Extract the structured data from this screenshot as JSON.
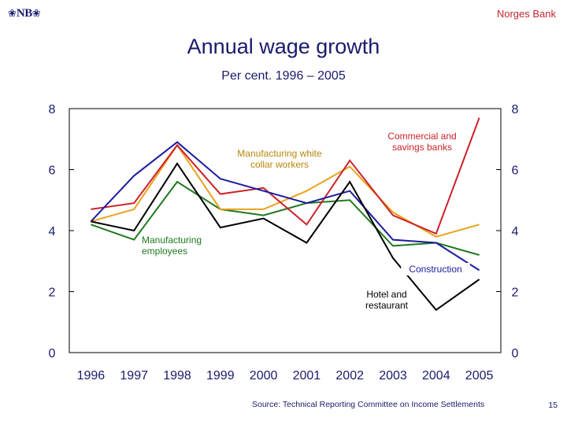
{
  "header": {
    "logo_text": "NB",
    "brand": "Norges Bank"
  },
  "footer": {
    "source": "Source: Technical Reporting Committee on Income Settlements",
    "page_number": "15"
  },
  "colors": {
    "heading": "#1a1a6e",
    "brand": "#c0262d",
    "axis": "#000000"
  },
  "chart_data": {
    "type": "line",
    "title": "Annual wage growth",
    "subtitle": "Per cent. 1996 – 2005",
    "xlabel": "",
    "ylabel": "",
    "categories": [
      "1996",
      "1997",
      "1998",
      "1999",
      "2000",
      "2001",
      "2002",
      "2003",
      "2004",
      "2005"
    ],
    "ylim": [
      0,
      8
    ],
    "yticks": [
      0,
      2,
      4,
      6,
      8
    ],
    "y_axis_sides": [
      "left",
      "right"
    ],
    "grid": false,
    "series": [
      {
        "name": "Manufacturing employees",
        "color": "#1f7a1f",
        "values": [
          4.2,
          3.7,
          5.6,
          4.7,
          4.5,
          4.9,
          5.0,
          3.5,
          3.6,
          3.2
        ]
      },
      {
        "name": "Manufacturing white collar workers",
        "color": "#e8a21b",
        "values": [
          4.3,
          4.7,
          6.8,
          4.7,
          4.7,
          5.3,
          6.1,
          4.6,
          3.8,
          4.2
        ]
      },
      {
        "name": "Commercial and savings banks",
        "color": "#cc2229",
        "values": [
          4.7,
          4.9,
          6.8,
          5.2,
          5.4,
          4.2,
          6.3,
          4.5,
          3.9,
          7.7
        ]
      },
      {
        "name": "Construction",
        "color": "#1c1ca0",
        "values": [
          4.3,
          5.8,
          6.9,
          5.7,
          5.3,
          4.9,
          5.3,
          3.7,
          3.6,
          2.7
        ]
      },
      {
        "name": "Hotel and restaurant",
        "color": "#000000",
        "values": [
          4.3,
          4.0,
          6.2,
          4.1,
          4.4,
          3.6,
          5.6,
          3.1,
          1.4,
          2.4
        ]
      }
    ],
    "annotations": [
      {
        "text": [
          "Manufacturing white",
          "collar workers"
        ],
        "color": "#b8860b"
      },
      {
        "text": [
          "Commercial and",
          "savings banks"
        ],
        "color": "#cc2229"
      },
      {
        "text": [
          "Manufacturing",
          "employees"
        ],
        "color": "#1f7a1f"
      },
      {
        "text": [
          "Construction"
        ],
        "color": "#1c1ca0"
      },
      {
        "text": [
          "Hotel and",
          "restaurant"
        ],
        "color": "#000000"
      }
    ]
  }
}
